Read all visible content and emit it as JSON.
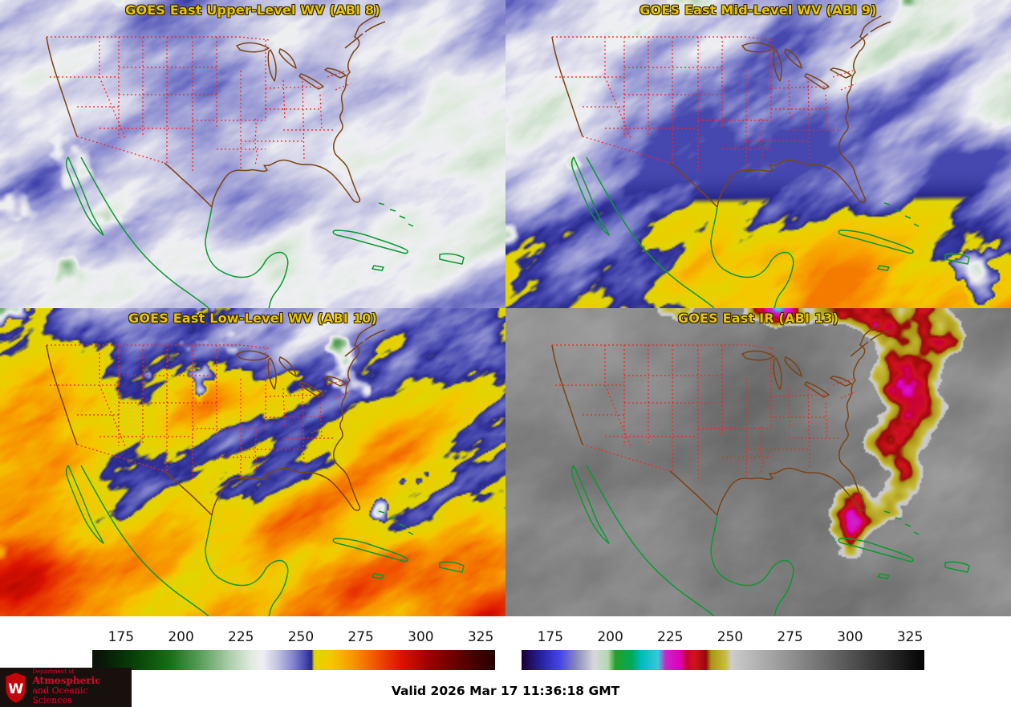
{
  "panels": [
    {
      "id": "abi8",
      "title": "GOES East Upper-Level WV (ABI 8)"
    },
    {
      "id": "abi9",
      "title": "GOES East Mid-Level WV (ABI 9)"
    },
    {
      "id": "abi10",
      "title": "GOES East Low-Level WV (ABI 10)"
    },
    {
      "id": "abi13",
      "title": "GOES East IR (ABI 13)"
    }
  ],
  "colorbars": [
    {
      "id": "wv",
      "ticks": [
        "175",
        "200",
        "225",
        "250",
        "275",
        "300",
        "325"
      ]
    },
    {
      "id": "ir",
      "ticks": [
        "175",
        "200",
        "225",
        "250",
        "275",
        "300",
        "325"
      ]
    }
  ],
  "footer": {
    "valid_label": "Valid 2026 Mar 17 11:36:18 GMT"
  },
  "logo": {
    "crest_letter": "W",
    "line1": "Department of",
    "line2": "Atmospheric",
    "line3": "and Oceanic Sciences"
  },
  "colors": {
    "panel_title": "#e9c400",
    "state_borders": "#ff1f1f",
    "us_coast": "#7a4416",
    "intl_coast": "#0a9a32",
    "logo_red": "#e4002b",
    "logo_bg": "#18100c",
    "crest_red": "#c5050c"
  }
}
